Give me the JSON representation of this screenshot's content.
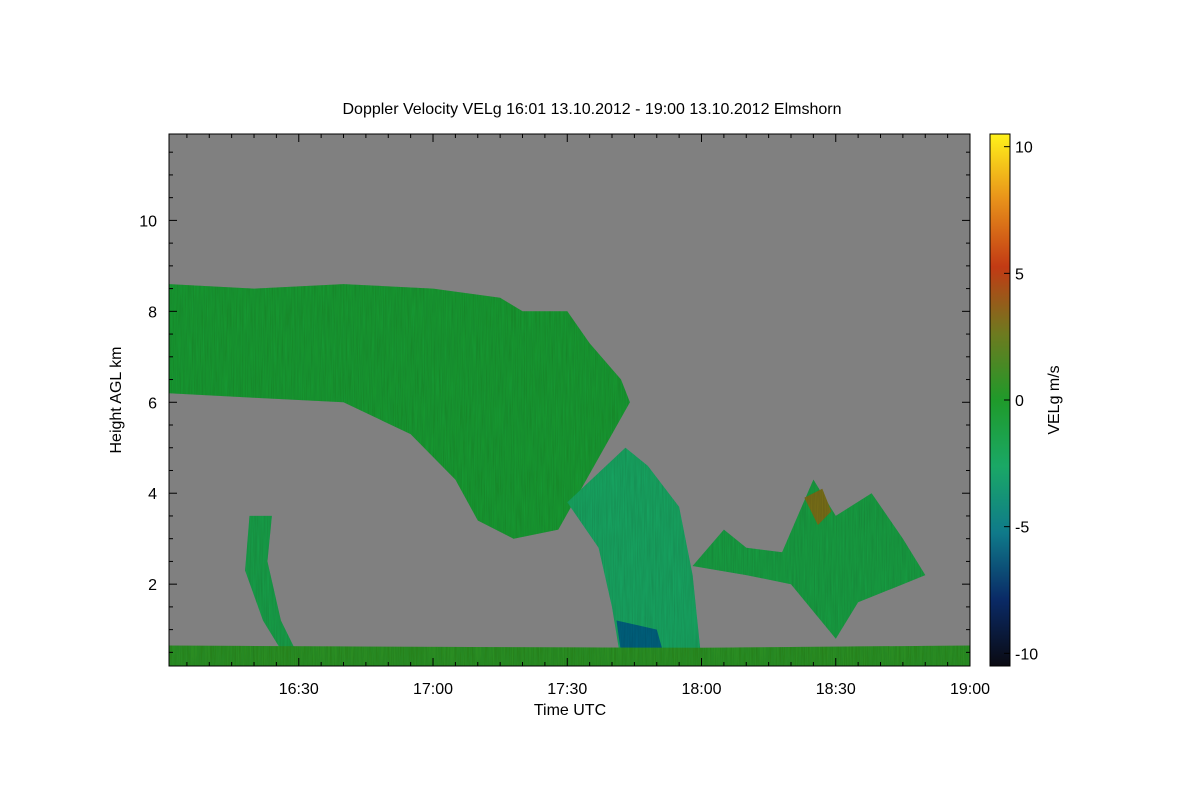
{
  "chart_data": {
    "type": "heatmap",
    "title": "Doppler Velocity VELg   16:01 13.10.2012 - 19:00 13.10.2012 Elmshorn",
    "xlabel": "Time UTC",
    "ylabel": "Height AGL km",
    "colorbar_label": "VELg m/s",
    "x_ticks": [
      "16:30",
      "17:00",
      "17:30",
      "18:00",
      "18:30",
      "19:00"
    ],
    "x_tick_minutes": [
      30,
      60,
      90,
      120,
      150,
      180
    ],
    "xlim_minutes": [
      1,
      180
    ],
    "y_ticks": [
      2,
      4,
      6,
      8,
      10
    ],
    "ylim": [
      0.2,
      11.9
    ],
    "colorbar_ticks": [
      10,
      5,
      0,
      -5,
      -10
    ],
    "colorbar_range": [
      -10.5,
      10.5
    ],
    "background_color": "#808080",
    "colorscale": [
      "#0a0a12",
      "#0a2a66",
      "#0f7a8a",
      "#1aa866",
      "#1f9a2a",
      "#6e7a1f",
      "#c23a14",
      "#e8901a",
      "#fff21a"
    ],
    "echo_regions": [
      {
        "name": "upper-cloud",
        "velocity": -0.5,
        "top": [
          [
            1,
            8.6
          ],
          [
            20,
            8.5
          ],
          [
            40,
            8.6
          ],
          [
            60,
            8.5
          ],
          [
            75,
            8.3
          ],
          [
            80,
            8.0
          ],
          [
            90,
            8.0
          ],
          [
            95,
            7.3
          ],
          [
            102,
            6.5
          ],
          [
            104,
            6.0
          ]
        ],
        "bottom": [
          [
            1,
            6.2
          ],
          [
            20,
            6.1
          ],
          [
            40,
            6.0
          ],
          [
            55,
            5.3
          ],
          [
            65,
            4.3
          ],
          [
            70,
            3.4
          ],
          [
            78,
            3.0
          ],
          [
            88,
            3.2
          ],
          [
            104,
            6.0
          ]
        ]
      },
      {
        "name": "fallstreak-left",
        "velocity": -1.5,
        "top": [
          [
            19,
            3.5
          ],
          [
            24,
            3.5
          ],
          [
            23,
            2.5
          ],
          [
            26,
            1.2
          ],
          [
            29,
            0.6
          ]
        ],
        "bottom": [
          [
            19,
            3.5
          ],
          [
            18,
            2.3
          ],
          [
            22,
            1.2
          ],
          [
            27,
            0.4
          ],
          [
            29,
            0.6
          ]
        ]
      },
      {
        "name": "central-shaft",
        "velocity": -2.5,
        "top": [
          [
            90,
            3.8
          ],
          [
            103,
            5.0
          ],
          [
            108,
            4.6
          ],
          [
            115,
            3.7
          ],
          [
            118,
            2.2
          ],
          [
            120,
            0.3
          ]
        ],
        "bottom": [
          [
            90,
            3.8
          ],
          [
            97,
            2.8
          ],
          [
            100,
            1.5
          ],
          [
            102,
            0.3
          ],
          [
            120,
            0.3
          ]
        ]
      },
      {
        "name": "shaft-core",
        "velocity": -6,
        "top": [
          [
            101,
            1.2
          ],
          [
            110,
            1.0
          ],
          [
            112,
            0.3
          ]
        ],
        "bottom": [
          [
            101,
            1.2
          ],
          [
            102,
            0.5
          ],
          [
            104,
            0.3
          ],
          [
            112,
            0.3
          ]
        ]
      },
      {
        "name": "right-cells",
        "velocity": -1.2,
        "top": [
          [
            118,
            2.4
          ],
          [
            125,
            3.2
          ],
          [
            130,
            2.8
          ],
          [
            138,
            2.7
          ],
          [
            145,
            4.3
          ],
          [
            150,
            3.5
          ],
          [
            158,
            4.0
          ],
          [
            165,
            3.0
          ],
          [
            170,
            2.2
          ]
        ],
        "bottom": [
          [
            118,
            2.4
          ],
          [
            130,
            2.2
          ],
          [
            140,
            2.0
          ],
          [
            150,
            0.8
          ],
          [
            155,
            1.6
          ],
          [
            165,
            2.0
          ],
          [
            170,
            2.2
          ]
        ]
      },
      {
        "name": "right-red-patch",
        "velocity": 3,
        "top": [
          [
            143,
            3.9
          ],
          [
            147,
            4.1
          ],
          [
            149,
            3.6
          ]
        ],
        "bottom": [
          [
            143,
            3.9
          ],
          [
            146,
            3.3
          ],
          [
            149,
            3.6
          ]
        ]
      },
      {
        "name": "near-surface",
        "velocity": 0.5,
        "top": [
          [
            1,
            0.65
          ],
          [
            60,
            0.62
          ],
          [
            120,
            0.6
          ],
          [
            180,
            0.65
          ]
        ],
        "bottom": [
          [
            1,
            0.2
          ],
          [
            180,
            0.2
          ]
        ]
      }
    ]
  }
}
